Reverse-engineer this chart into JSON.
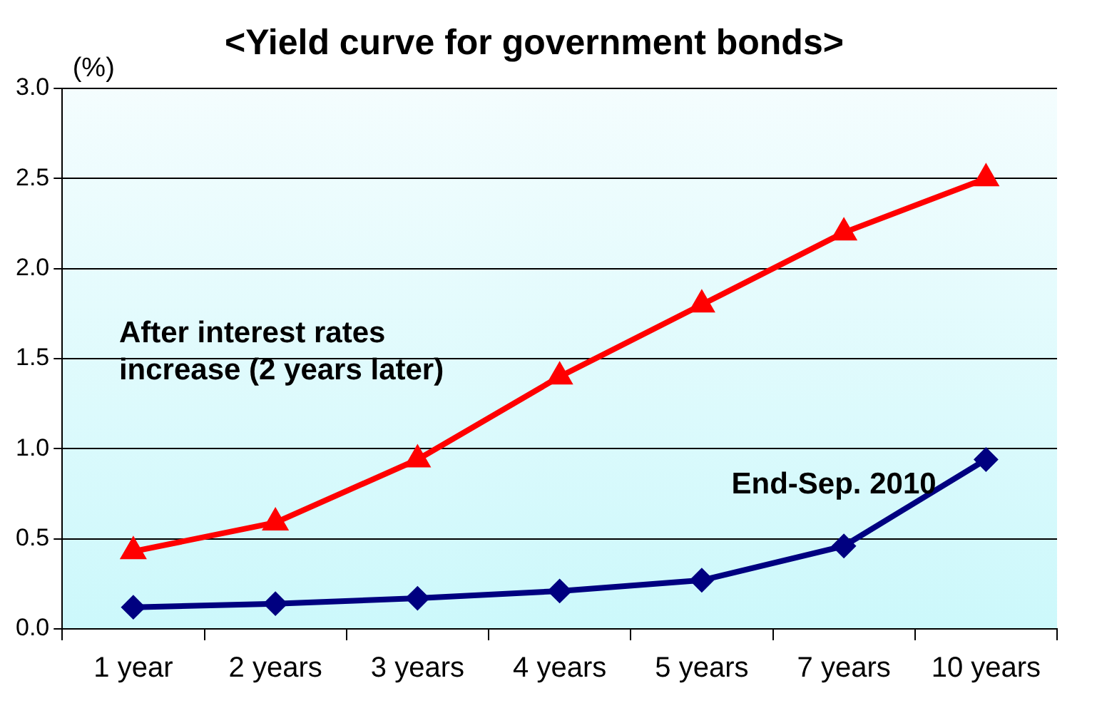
{
  "chart_data": {
    "type": "line",
    "title": "<Yield curve for government bonds>",
    "ylabel": "(%)",
    "categories": [
      "1 year",
      "2 years",
      "3 years",
      "4 years",
      "5 years",
      "7 years",
      "10 years"
    ],
    "series": [
      {
        "name": "After interest rates increase (2 years later)",
        "color": "#ff0000",
        "marker": "triangle",
        "values": [
          0.43,
          0.59,
          0.94,
          1.4,
          1.8,
          2.2,
          2.5
        ]
      },
      {
        "name": "End-Sep. 2010",
        "color": "#000080",
        "marker": "diamond",
        "values": [
          0.12,
          0.14,
          0.17,
          0.21,
          0.27,
          0.46,
          0.94
        ]
      }
    ],
    "ylim": [
      0,
      3
    ],
    "yticks": [
      {
        "value": 0,
        "label": "0.0"
      },
      {
        "value": 0.5,
        "label": "0.5"
      },
      {
        "value": 1,
        "label": "1.0"
      },
      {
        "value": 1.5,
        "label": "1.5"
      },
      {
        "value": 2,
        "label": "2.0"
      },
      {
        "value": 2.5,
        "label": "2.5"
      },
      {
        "value": 3,
        "label": "3.0"
      }
    ],
    "grid": "y",
    "legend": false,
    "line_style": "solid"
  }
}
